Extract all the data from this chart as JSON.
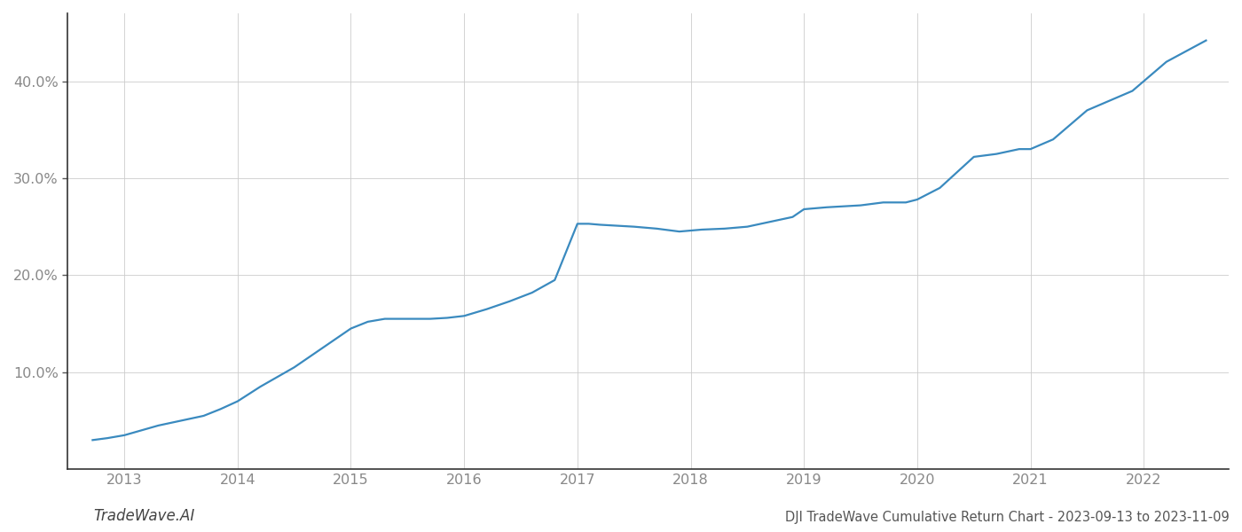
{
  "title": "DJI TradeWave Cumulative Return Chart - 2023-09-13 to 2023-11-09",
  "watermark": "TradeWave.AI",
  "line_color": "#3a8abf",
  "background_color": "#ffffff",
  "grid_color": "#cccccc",
  "x_years": [
    2013,
    2014,
    2015,
    2016,
    2017,
    2018,
    2019,
    2020,
    2021,
    2022
  ],
  "data_x": [
    2012.72,
    2012.85,
    2013.0,
    2013.15,
    2013.3,
    2013.5,
    2013.7,
    2013.85,
    2014.0,
    2014.2,
    2014.5,
    2014.75,
    2015.0,
    2015.15,
    2015.3,
    2015.5,
    2015.7,
    2015.85,
    2016.0,
    2016.2,
    2016.4,
    2016.6,
    2016.8,
    2017.0,
    2017.1,
    2017.2,
    2017.5,
    2017.7,
    2017.9,
    2018.1,
    2018.3,
    2018.5,
    2018.7,
    2018.9,
    2019.0,
    2019.2,
    2019.5,
    2019.7,
    2019.9,
    2020.0,
    2020.2,
    2020.5,
    2020.7,
    2020.9,
    2021.0,
    2021.2,
    2021.5,
    2021.7,
    2021.9,
    2022.0,
    2022.2,
    2022.55
  ],
  "data_y": [
    3.0,
    3.2,
    3.5,
    4.0,
    4.5,
    5.0,
    5.5,
    6.2,
    7.0,
    8.5,
    10.5,
    12.5,
    14.5,
    15.2,
    15.5,
    15.5,
    15.5,
    15.6,
    15.8,
    16.5,
    17.3,
    18.2,
    19.5,
    25.3,
    25.3,
    25.2,
    25.0,
    24.8,
    24.5,
    24.7,
    24.8,
    25.0,
    25.5,
    26.0,
    26.8,
    27.0,
    27.2,
    27.5,
    27.5,
    27.8,
    29.0,
    32.2,
    32.5,
    33.0,
    33.0,
    34.0,
    37.0,
    38.0,
    39.0,
    40.0,
    42.0,
    44.2
  ],
  "ylim": [
    0,
    47
  ],
  "xlim": [
    2012.5,
    2022.75
  ],
  "yticks": [
    10.0,
    20.0,
    30.0,
    40.0
  ],
  "ytick_labels": [
    "10.0%",
    "20.0%",
    "30.0%",
    "40.0%"
  ],
  "line_width": 1.6,
  "title_fontsize": 10.5,
  "tick_fontsize": 11.5,
  "watermark_fontsize": 12
}
